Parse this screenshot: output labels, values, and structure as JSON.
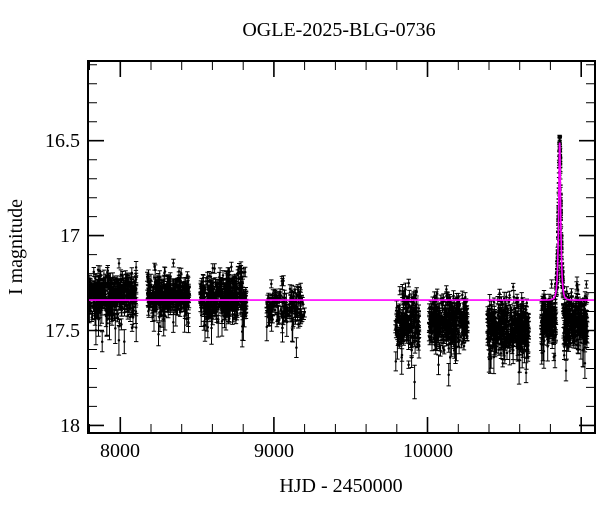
{
  "figure": {
    "title": "OGLE-2025-BLG-0736",
    "xlabel": "HJD - 2450000",
    "ylabel": "I magnitude",
    "background_color": "#ffffff",
    "axis_color": "#000000",
    "data_point_color": "#000000",
    "model_line_color": "#ff00ff"
  },
  "chart_data": {
    "type": "scatter",
    "title": "OGLE-2025-BLG-0736",
    "xlabel": "HJD - 2450000",
    "ylabel": "I magnitude",
    "xlim": [
      7790,
      11090
    ],
    "ylim": [
      18.04,
      16.08
    ],
    "y_axis_inverted": true,
    "grid": false,
    "legend": false,
    "x_major_ticks": [
      8000,
      9000,
      10000,
      11000
    ],
    "x_tick_labels": [
      "8000",
      "9000",
      "10000"
    ],
    "x_minor_step": 200,
    "y_major_ticks": [
      16.5,
      17.0,
      17.5,
      18.0
    ],
    "y_tick_labels": [
      "16.5",
      "17",
      "17.5",
      "18"
    ],
    "y_minor_step": 0.1,
    "series": [
      {
        "name": "OGLE I-band photometry",
        "marker": "point-with-errorbar",
        "color": "#000000",
        "seasons": [
          {
            "t_start": 7795,
            "t_end": 8105,
            "n": 400,
            "mean_mag": 17.31,
            "sigma": 0.055
          },
          {
            "t_start": 8175,
            "t_end": 8450,
            "n": 350,
            "mean_mag": 17.31,
            "sigma": 0.055
          },
          {
            "t_start": 8520,
            "t_end": 8820,
            "n": 400,
            "mean_mag": 17.32,
            "sigma": 0.06
          },
          {
            "t_start": 8950,
            "t_end": 9200,
            "n": 150,
            "mean_mag": 17.37,
            "sigma": 0.05
          },
          {
            "t_start": 9790,
            "t_end": 9945,
            "n": 200,
            "mean_mag": 17.46,
            "sigma": 0.07
          },
          {
            "t_start": 10010,
            "t_end": 10260,
            "n": 350,
            "mean_mag": 17.45,
            "sigma": 0.065
          },
          {
            "t_start": 10390,
            "t_end": 10660,
            "n": 400,
            "mean_mag": 17.48,
            "sigma": 0.07
          },
          {
            "t_start": 10740,
            "t_end": 11040,
            "n": 450,
            "mean_mag": 17.45,
            "sigma": 0.065,
            "contains_event": true
          }
        ]
      },
      {
        "name": "microlensing model",
        "marker": "line",
        "color": "#ff00ff",
        "baseline_mag": 17.34,
        "t0": 10860,
        "tE_days": 11,
        "u0": 0.51,
        "peak_mag": 16.51,
        "event_points_n": 80
      }
    ]
  }
}
